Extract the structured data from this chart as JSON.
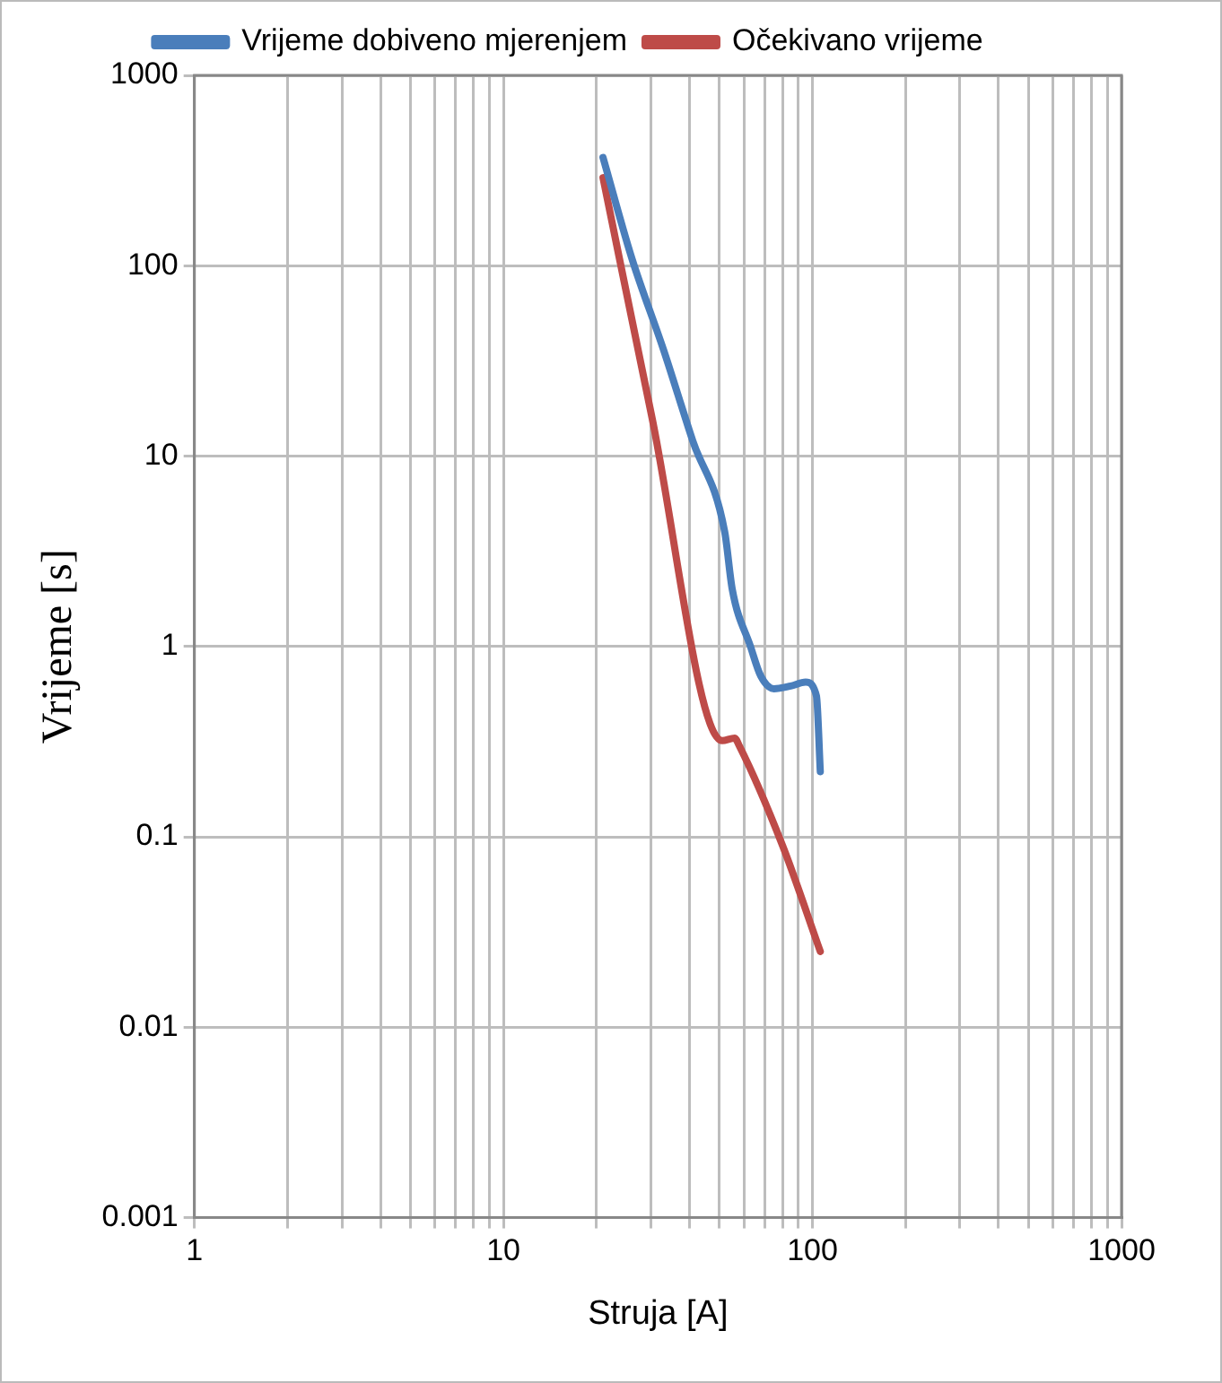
{
  "chart_data": {
    "type": "line",
    "xlabel": "Struja [A]",
    "ylabel": "Vrijeme [s]",
    "series": [
      {
        "name": "Vrijeme dobiveno mjerenjem",
        "color": "#4a7ebb",
        "x": [
          21,
          26,
          33,
          41,
          52,
          55,
          63,
          68,
          75,
          85,
          95,
          103,
          106
        ],
        "values": [
          370,
          110,
          36,
          12,
          4,
          2,
          1,
          0.7,
          0.6,
          0.62,
          0.65,
          0.55,
          0.22
        ]
      },
      {
        "name": "Očekivano vrijeme",
        "color": "#be4b48",
        "x": [
          21,
          30,
          51,
          56,
          58,
          80,
          106
        ],
        "values": [
          290,
          17,
          0.32,
          0.33,
          0.3,
          0.09,
          0.025
        ]
      }
    ],
    "log": "xy",
    "xlim": [
      1,
      1000
    ],
    "ylim": [
      0.001,
      1000
    ],
    "xticks": [
      1,
      {
        "value": 2,
        "label": null
      },
      {
        "value": 3,
        "label": null
      },
      {
        "value": 4,
        "label": null
      },
      {
        "value": 5,
        "label": null
      },
      {
        "value": 6,
        "label": null
      },
      {
        "value": 7,
        "label": null
      },
      {
        "value": 8,
        "label": null
      },
      {
        "value": 9,
        "label": null
      },
      10,
      {
        "value": 20,
        "label": null
      },
      {
        "value": 30,
        "label": null
      },
      {
        "value": 40,
        "label": null
      },
      {
        "value": 50,
        "label": null
      },
      {
        "value": 60,
        "label": null
      },
      {
        "value": 70,
        "label": null
      },
      {
        "value": 80,
        "label": null
      },
      {
        "value": 90,
        "label": null
      },
      100,
      {
        "value": 200,
        "label": null
      },
      {
        "value": 300,
        "label": null
      },
      {
        "value": 400,
        "label": null
      },
      {
        "value": 500,
        "label": null
      },
      {
        "value": 600,
        "label": null
      },
      {
        "value": 700,
        "label": null
      },
      {
        "value": 800,
        "label": null
      },
      {
        "value": 900,
        "label": null
      },
      1000
    ],
    "yticks": [
      0.001,
      0.01,
      0.1,
      1,
      10,
      100,
      1000
    ],
    "grid": true,
    "legend": "top",
    "marker": "none",
    "line_style": "solid"
  }
}
